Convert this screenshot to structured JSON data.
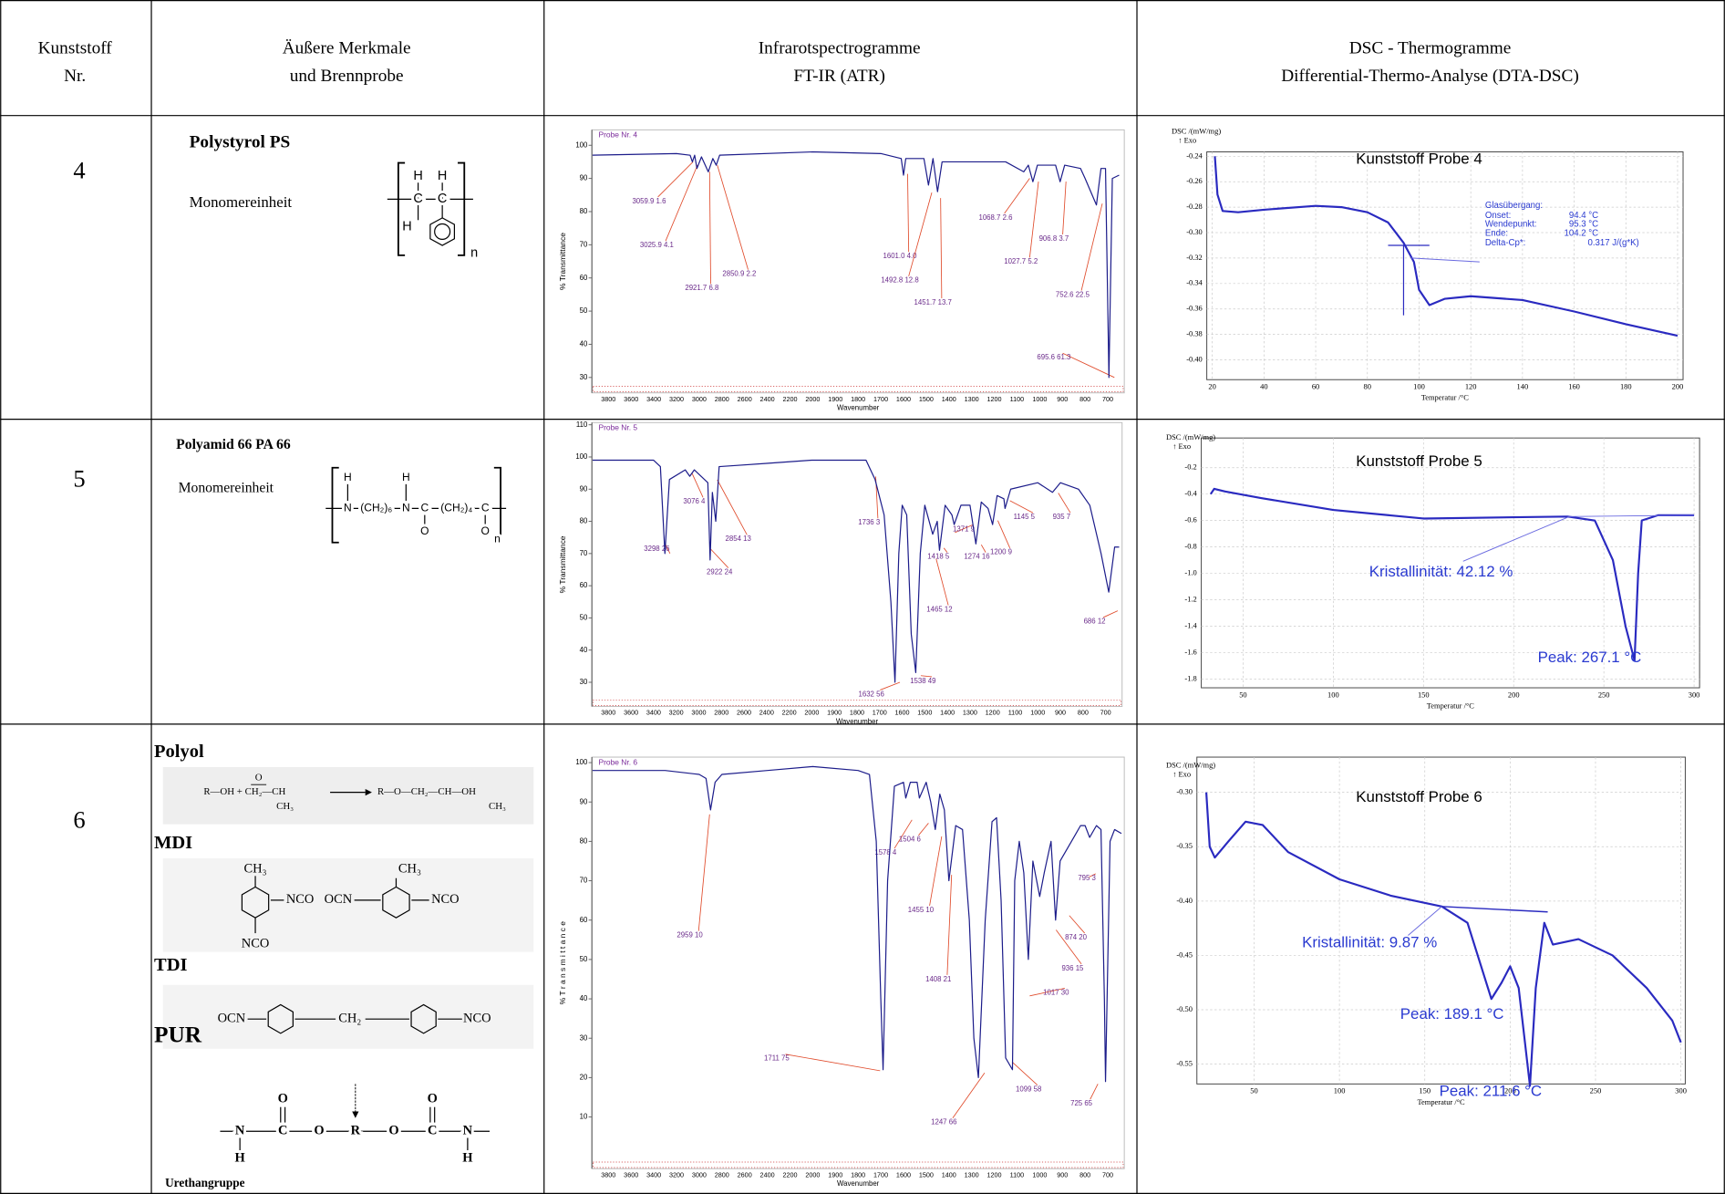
{
  "header": [
    [
      "Kunststoff",
      "Nr."
    ],
    [
      "Äußere Merkmale",
      "und Brennprobe"
    ],
    [
      "Infrarotspectrogramme",
      "FT-IR (ATR)"
    ],
    [
      "DSC - Thermogramme",
      "Differential-Thermo-Analyse (DTA-DSC)"
    ]
  ],
  "rows": [
    {
      "nr": "4",
      "features": {
        "name": "Polystyrol    PS",
        "monomer": "Monomereinheit",
        "structure": [
          "H",
          "H",
          "C",
          "C",
          "H",
          "n"
        ]
      },
      "ir": {
        "title": "Probe Nr. 4",
        "ylabel": "% Transmittance",
        "xlabel": "Wavenumber",
        "yticks": [
          "100",
          "90",
          "80",
          "70",
          "60",
          "50",
          "40",
          "30"
        ],
        "xticks": [
          "3800",
          "3600",
          "3400",
          "3200",
          "3000",
          "2800",
          "2600",
          "2400",
          "2200",
          "2000",
          "1900",
          "1800",
          "1700",
          "1600",
          "1500",
          "1400",
          "1300",
          "1200",
          "1100",
          "1000",
          "900",
          "800",
          "700"
        ],
        "peaks": [
          "3059.9  1.6",
          "3025.9  4.1",
          "2921.7  6.8",
          "2850.9  2.2",
          "1601.0  4.0",
          "1492.8  12.8",
          "1451.7  13.7",
          "1068.7  2.6",
          "1027.7  5.2",
          "906.8  3.7",
          "752.6  22.5",
          "695.6  61.3"
        ]
      },
      "dsc": {
        "ylabel": "DSC /(mW/mg)",
        "exo": "↑ Exo",
        "title": "Kunststoff Probe 4",
        "xlabel": "Temperatur /°C",
        "yticks": [
          "-0.24",
          "-0.26",
          "-0.28",
          "-0.30",
          "-0.32",
          "-0.34",
          "-0.36",
          "-0.38",
          "-0.40"
        ],
        "xticks": [
          "20",
          "40",
          "60",
          "80",
          "100",
          "120",
          "140",
          "160",
          "180",
          "200"
        ],
        "notes": [
          "Glasübergang:",
          "Onset:",
          "94.4 °C",
          "Wendepunkt:",
          "95.3 °C",
          "Ende:",
          "104.2 °C",
          "Delta-Cp*:",
          "0.317 J/(g*K)"
        ]
      }
    },
    {
      "nr": "5",
      "features": {
        "name": "Polyamid 66   PA 66",
        "monomer": "Monomereinheit",
        "structure": [
          "H",
          "N",
          "(CH₂)₆",
          "H",
          "N",
          "C",
          "(CH₂)₄",
          "C",
          "O",
          "O",
          "n"
        ]
      },
      "ir": {
        "title": "Probe Nr. 5",
        "ylabel": "% Transmittance",
        "xlabel": "Wavenumber",
        "yticks": [
          "110",
          "100",
          "90",
          "80",
          "70",
          "60",
          "50",
          "40",
          "30"
        ],
        "xticks": [
          "3800",
          "3600",
          "3400",
          "3200",
          "3000",
          "2800",
          "2600",
          "2400",
          "2200",
          "2000",
          "1900",
          "1800",
          "1700",
          "1600",
          "1500",
          "1400",
          "1300",
          "1200",
          "1100",
          "1000",
          "900",
          "800",
          "700"
        ],
        "peaks": [
          "3076  4",
          "2854  13",
          "3298  26",
          "2922  24",
          "1736  3",
          "1632  56",
          "1538  49",
          "1418  5",
          "1465  12",
          "1371  9",
          "1274  16",
          "1200  9",
          "1145  5",
          "935  7",
          "686  12"
        ]
      },
      "dsc": {
        "ylabel": "DSC /(mW/mg)",
        "exo": "↑ Exo",
        "title": "Kunststoff Probe 5",
        "xlabel": "Temperatur /°C",
        "yticks": [
          "-0.2",
          "-0.4",
          "-0.6",
          "-0.8",
          "-1.0",
          "-1.2",
          "-1.4",
          "-1.6",
          "-1.8"
        ],
        "xticks": [
          "50",
          "100",
          "150",
          "200",
          "250",
          "300"
        ],
        "notes": [
          "Kristallinität: 42.12 %",
          "Peak: 267.1 °C"
        ]
      }
    },
    {
      "nr": "6",
      "features": {
        "polyol": "Polyol",
        "polyol_eq": [
          "R—OH + CH₂—CH",
          "O",
          "CH₃",
          "R—O—CH₂—CH—OH",
          "CH₃"
        ],
        "mdi": "MDI",
        "mdi_struct": [
          "CH₃",
          "NCO",
          "NCO",
          "OCN",
          "CH₃",
          "NCO"
        ],
        "tdi": "TDI",
        "tdi_struct": [
          "OCN",
          "CH₂",
          "NCO"
        ],
        "pur": "PUR",
        "pur_struct": [
          "O",
          "O",
          "N",
          "C",
          "O",
          "R",
          "O",
          "C",
          "N",
          "H",
          "H"
        ],
        "urethane": "Urethangruppe"
      },
      "ir": {
        "title": "Probe Nr. 6",
        "ylabel": "% T r a n s m i t t a n c e",
        "xlabel": "Wavenumber",
        "yticks": [
          "100",
          "90",
          "80",
          "70",
          "60",
          "50",
          "40",
          "30",
          "20",
          "10"
        ],
        "xticks": [
          "3800",
          "3600",
          "3400",
          "3200",
          "3000",
          "2800",
          "2600",
          "2400",
          "2200",
          "2000",
          "1900",
          "1800",
          "1700",
          "1600",
          "1500",
          "1400",
          "1300",
          "1200",
          "1100",
          "1000",
          "900",
          "800",
          "700"
        ],
        "peaks": [
          "2959  10",
          "1711  75",
          "1578  4",
          "1504  6",
          "1455  10",
          "1408  21",
          "1247  66",
          "1099  58",
          "1017  30",
          "936  15",
          "874  20",
          "795  3",
          "725  65"
        ]
      },
      "dsc": {
        "ylabel": "DSC /(mW/mg)",
        "exo": "↑ Exo",
        "title": "Kunststoff Probe 6",
        "xlabel": "Temperatur /°C",
        "yticks": [
          "-0.30",
          "-0.35",
          "-0.40",
          "-0.45",
          "-0.50",
          "-0.55"
        ],
        "xticks": [
          "50",
          "100",
          "150",
          "200",
          "250",
          "300"
        ],
        "notes": [
          "Kristallinität: 9.87 %",
          "Peak: 189.1 °C",
          "Peak: 211.6 °C"
        ]
      }
    }
  ]
}
